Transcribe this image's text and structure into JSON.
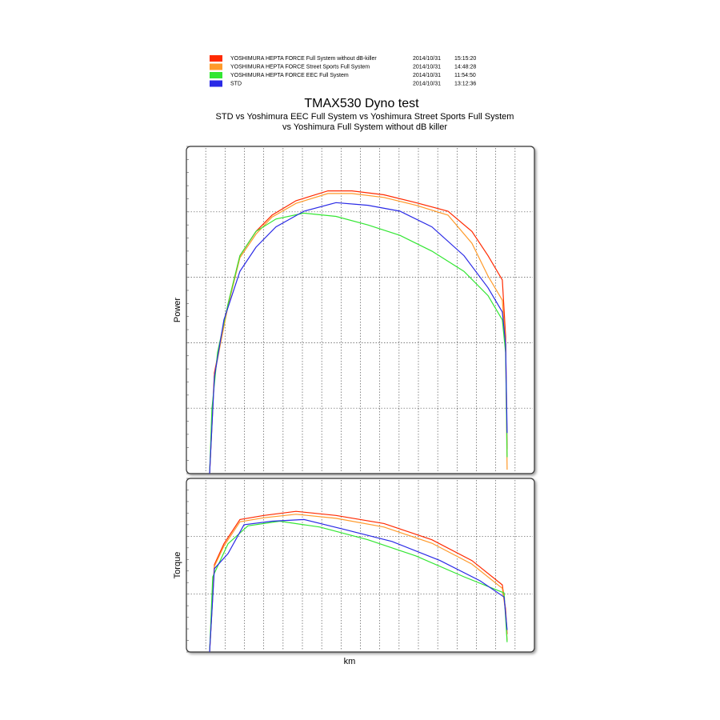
{
  "chart_data": [
    {
      "type": "line",
      "title": "TMAX530 Dyno test",
      "subtitle": [
        "STD vs Yoshimura EEC Full System vs Yoshimura Street Sports Full System",
        "vs Yoshimura Full System without dB killer"
      ],
      "ylabel": "Power",
      "xlim": [
        0,
        18
      ],
      "ylim": [
        0,
        5
      ],
      "series": [
        {
          "name": "YOSHIMURA HEPTA FORCE Full System without dB-killer",
          "date": "2014/10/31",
          "time": "15:15:20",
          "color": "#ff2a00",
          "x": [
            1.2,
            1.45,
            1.74,
            2.15,
            2.77,
            3.6,
            4.43,
            5.67,
            7.32,
            8.56,
            10.22,
            11.87,
            13.53,
            14.77,
            15.6,
            16.34,
            16.51,
            16.59
          ],
          "values": [
            0,
            1.54,
            1.98,
            2.59,
            3.33,
            3.7,
            3.95,
            4.17,
            4.32,
            4.32,
            4.26,
            4.14,
            4.01,
            3.7,
            3.33,
            2.96,
            2.1,
            0.37
          ]
        },
        {
          "name": "YOSHIMURA HEPTA FORCE Street Sports Full System",
          "date": "2014/10/31",
          "time": "14:48:28",
          "color": "#ff9a2a",
          "x": [
            1.2,
            1.45,
            1.74,
            2.15,
            2.77,
            3.6,
            4.43,
            5.67,
            7.32,
            8.56,
            10.22,
            11.87,
            13.53,
            14.77,
            15.6,
            16.34,
            16.51,
            16.59
          ],
          "values": [
            0,
            1.5,
            1.95,
            2.56,
            3.3,
            3.66,
            3.92,
            4.13,
            4.28,
            4.28,
            4.22,
            4.1,
            3.95,
            3.52,
            3.02,
            2.65,
            1.98,
            0.06
          ]
        },
        {
          "name": "YOSHIMURA HEPTA FORCE EEC Full System",
          "date": "2014/10/31",
          "time": "11:54:50",
          "color": "#33e633",
          "x": [
            1.2,
            1.32,
            1.61,
            2.15,
            2.77,
            3.6,
            4.63,
            6.08,
            7.74,
            9.39,
            11.05,
            12.7,
            14.36,
            15.6,
            16.34,
            16.51,
            16.59
          ],
          "values": [
            0,
            0.99,
            1.85,
            2.59,
            3.33,
            3.7,
            3.89,
            3.98,
            3.93,
            3.8,
            3.64,
            3.4,
            3.09,
            2.72,
            2.35,
            1.85,
            0.25
          ]
        },
        {
          "name": "STD",
          "date": "2014/10/31",
          "time": "13:12:36",
          "color": "#2a2ae6",
          "x": [
            1.2,
            1.45,
            1.94,
            2.77,
            3.6,
            4.63,
            6.08,
            7.74,
            9.39,
            11.05,
            12.7,
            14.36,
            15.6,
            16.34,
            16.51,
            16.59
          ],
          "values": [
            0,
            1.48,
            2.35,
            3.09,
            3.46,
            3.77,
            4.01,
            4.14,
            4.1,
            4.01,
            3.77,
            3.33,
            2.84,
            2.47,
            1.98,
            0.62
          ]
        }
      ]
    },
    {
      "type": "line",
      "ylabel": "Torque",
      "xlabel": "km",
      "xlim": [
        0,
        18
      ],
      "ylim": [
        0,
        3
      ],
      "series": [
        {
          "color": "#ff2a00",
          "x": [
            1.2,
            1.45,
            1.94,
            2.77,
            4.01,
            5.67,
            7.74,
            10.22,
            12.7,
            14.77,
            16.34,
            16.51,
            16.59
          ],
          "values": [
            0,
            1.51,
            1.87,
            2.29,
            2.36,
            2.43,
            2.36,
            2.22,
            1.94,
            1.58,
            1.16,
            0.74,
            0.31
          ]
        },
        {
          "color": "#ff9a2a",
          "x": [
            1.2,
            1.45,
            1.94,
            2.77,
            4.01,
            5.67,
            7.74,
            10.22,
            12.7,
            14.77,
            16.34,
            16.51,
            16.59
          ],
          "values": [
            0,
            1.48,
            1.83,
            2.25,
            2.32,
            2.38,
            2.31,
            2.16,
            1.88,
            1.52,
            1.1,
            0.7,
            0.2
          ]
        },
        {
          "color": "#33e633",
          "x": [
            1.2,
            1.36,
            2.15,
            3.18,
            4.83,
            6.9,
            9.39,
            11.87,
            14.36,
            16.43,
            16.59
          ],
          "values": [
            0,
            1.3,
            1.87,
            2.18,
            2.26,
            2.16,
            1.94,
            1.66,
            1.3,
            1.02,
            0.17
          ]
        },
        {
          "color": "#2a2ae6",
          "x": [
            1.2,
            1.45,
            2.15,
            2.98,
            4.43,
            6.08,
            8.15,
            10.63,
            13.12,
            15.19,
            16.43,
            16.59
          ],
          "values": [
            0,
            1.44,
            1.7,
            2.2,
            2.26,
            2.29,
            2.12,
            1.91,
            1.58,
            1.23,
            0.95,
            0.38
          ]
        }
      ]
    }
  ]
}
